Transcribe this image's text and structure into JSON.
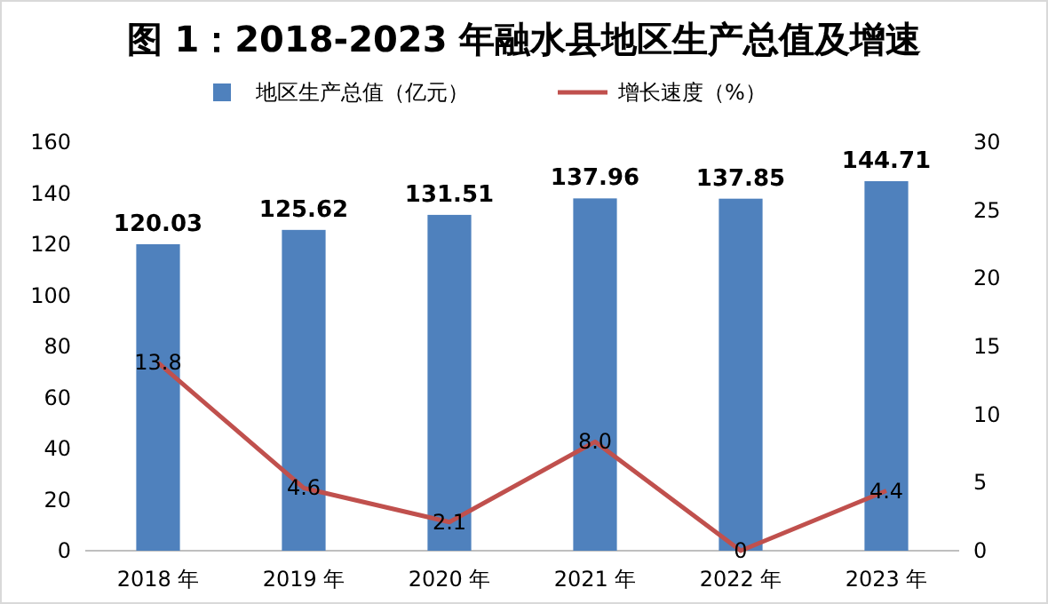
{
  "chart_data": {
    "type": "bar",
    "title": "图 1：2018-2023 年融水县地区生产总值及增速",
    "categories": [
      "2018 年",
      "2019 年",
      "2020 年",
      "2021 年",
      "2022 年",
      "2023 年"
    ],
    "series": [
      {
        "name": "地区生产总值（亿元）",
        "color": "#4f81bd",
        "values": [
          120.03,
          125.62,
          131.51,
          137.96,
          137.85,
          144.71
        ],
        "value_labels": [
          "120.03",
          "125.62",
          "131.51",
          "137.96",
          "137.85",
          "144.71"
        ]
      },
      {
        "name": "增长速度（%）",
        "type": "line",
        "axis": "y2",
        "color": "#c0504d",
        "values": [
          13.8,
          4.6,
          2.1,
          8.0,
          0,
          4.4
        ],
        "value_labels": [
          "13.8",
          "4.6",
          "2.1",
          "8.0",
          "0",
          "4.4"
        ],
        "marker": "none"
      }
    ],
    "ylim": [
      0,
      160
    ],
    "yticks": [
      0,
      20,
      40,
      60,
      80,
      100,
      120,
      140,
      160
    ],
    "y2lim": [
      0,
      30
    ],
    "y2ticks": [
      0,
      5,
      10,
      15,
      20,
      25,
      30
    ],
    "legend": "top",
    "grid": false
  }
}
